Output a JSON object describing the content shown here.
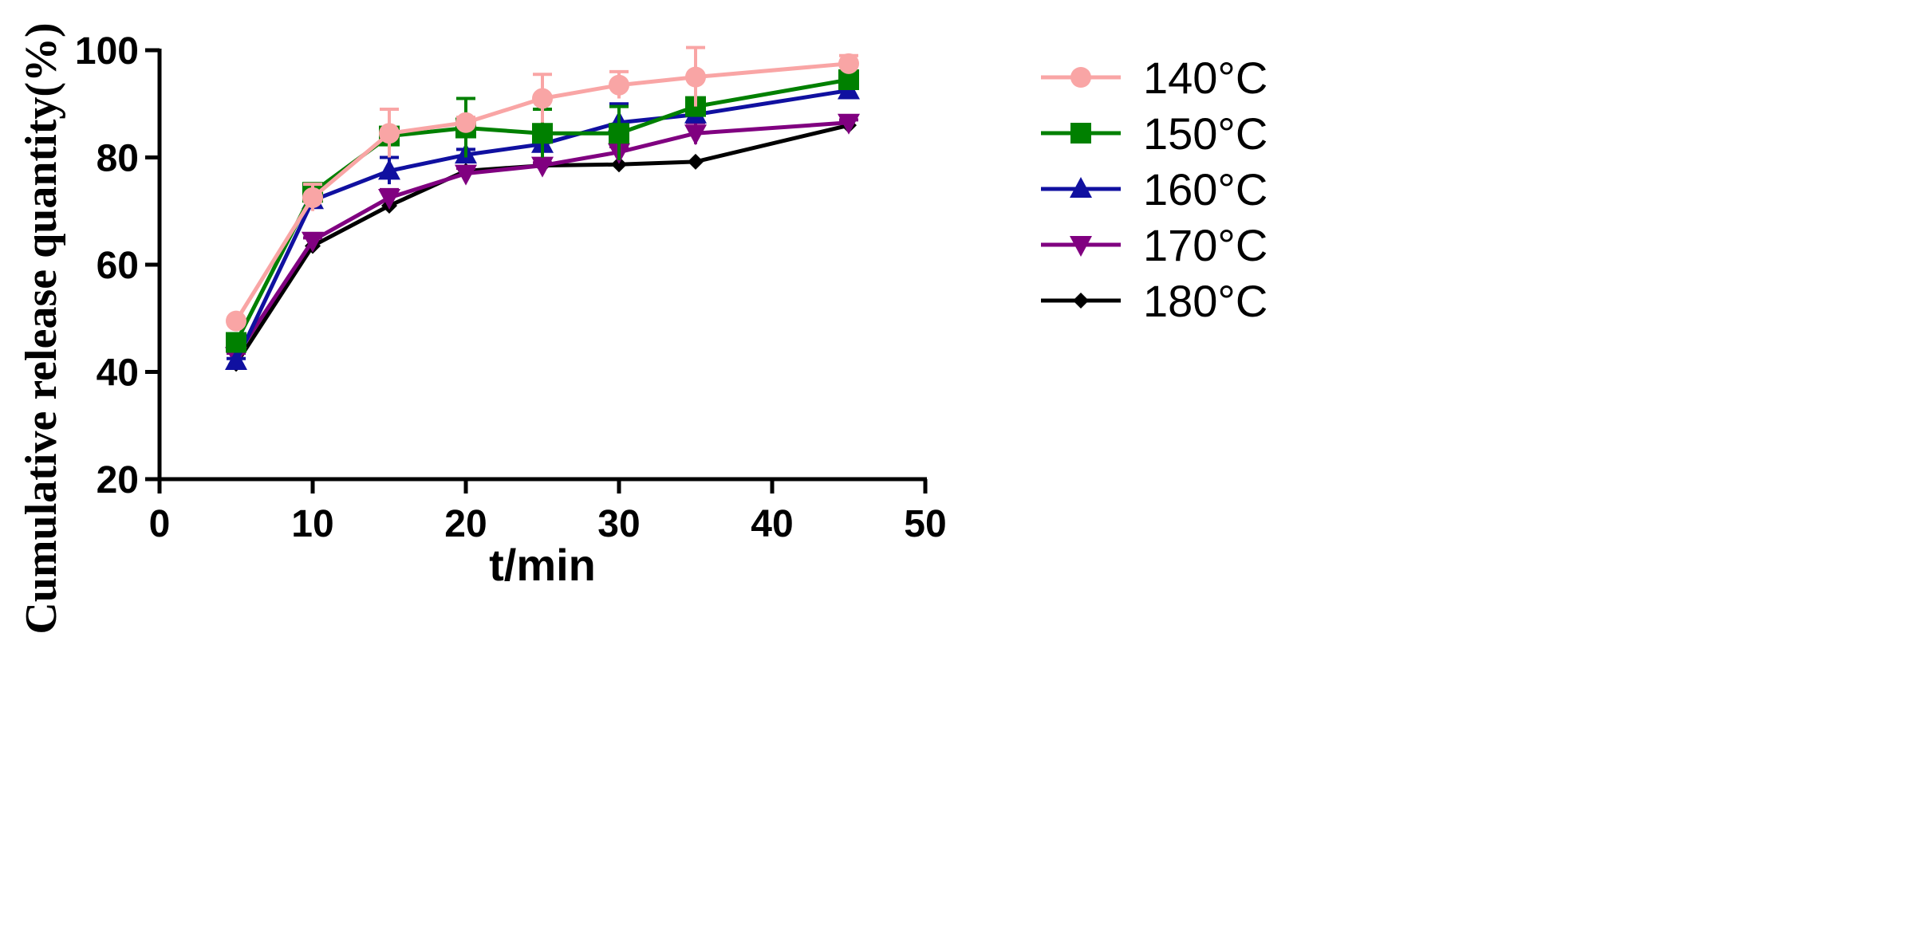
{
  "chart_data": {
    "type": "line",
    "title": "",
    "xlabel": "t/min",
    "ylabel": "Cumulative release quantity(%)",
    "xlim": [
      0,
      50
    ],
    "ylim": [
      20,
      100
    ],
    "xticks": [
      0,
      10,
      20,
      30,
      40,
      50
    ],
    "yticks": [
      20,
      40,
      60,
      80,
      100
    ],
    "grid": false,
    "legend_position": "right",
    "x": [
      5,
      10,
      15,
      20,
      25,
      30,
      35,
      45
    ],
    "series": [
      {
        "name": "140°C",
        "color": "#F9A5A5",
        "marker": "circle",
        "values": [
          49.5,
          72.5,
          84.5,
          86.5,
          91.0,
          93.5,
          95.0,
          97.5
        ],
        "errors": [
          0.5,
          2.5,
          4.5,
          1.0,
          4.5,
          2.5,
          5.5,
          1.5
        ]
      },
      {
        "name": "150°C",
        "color": "#008000",
        "marker": "square",
        "values": [
          45.5,
          73.5,
          84.0,
          85.5,
          84.5,
          84.5,
          89.5,
          94.5
        ],
        "errors": [
          0.5,
          1.0,
          1.0,
          5.5,
          4.5,
          5.0,
          1.0,
          1.0
        ]
      },
      {
        "name": "160°C",
        "color": "#1010A0",
        "marker": "triangle-up",
        "values": [
          42.0,
          72.0,
          77.5,
          80.5,
          82.5,
          86.5,
          88.0,
          92.5
        ],
        "errors": [
          0.5,
          1.0,
          2.5,
          1.0,
          1.0,
          3.5,
          1.5,
          0.5
        ]
      },
      {
        "name": "170°C",
        "color": "#800080",
        "marker": "triangle-down",
        "values": [
          43.0,
          64.5,
          72.5,
          77.0,
          78.5,
          81.0,
          84.5,
          86.5
        ],
        "errors": [
          0.5,
          0.5,
          1.5,
          1.0,
          0.5,
          1.0,
          2.0,
          0.5
        ]
      },
      {
        "name": "180°C",
        "color": "#000000",
        "marker": "diamond",
        "values": [
          41.5,
          63.5,
          71.0,
          77.5,
          78.5,
          78.7,
          79.2,
          86.0
        ],
        "errors": [
          0,
          0,
          0,
          0,
          0,
          0,
          0,
          0
        ]
      }
    ]
  }
}
